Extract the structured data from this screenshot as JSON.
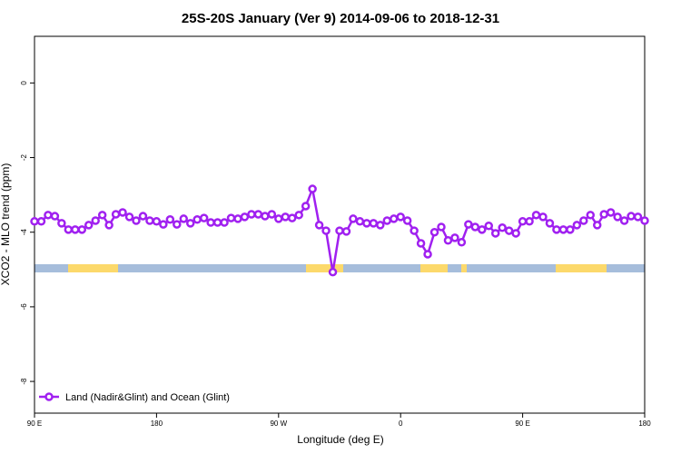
{
  "chart_data": {
    "type": "line",
    "title": "25S-20S January (Ver 9)   2014-09-06 to 2018-12-31",
    "x_label": "Longitude (deg E)",
    "y_label": "XCO2 - MLO trend (ppm)",
    "xlim": [
      90,
      540
    ],
    "ylim": [
      -8.85,
      1.25
    ],
    "xticks": [
      {
        "value": 90,
        "label": "90 E"
      },
      {
        "value": 180,
        "label": "180"
      },
      {
        "value": 270,
        "label": "90 W"
      },
      {
        "value": 360,
        "label": "0"
      },
      {
        "value": 450,
        "label": "90 E"
      },
      {
        "value": 540,
        "label": "180"
      }
    ],
    "yticks": [
      0,
      -2,
      -4,
      -6,
      -8
    ],
    "legend": "bottom-left",
    "x": [
      90,
      95,
      100,
      105,
      110,
      115,
      120,
      125,
      130,
      135,
      140,
      145,
      150,
      155,
      160,
      165,
      170,
      175,
      180,
      185,
      190,
      195,
      200,
      205,
      210,
      215,
      220,
      225,
      230,
      235,
      240,
      245,
      250,
      255,
      260,
      265,
      270,
      275,
      280,
      285,
      290,
      295,
      300,
      305,
      310,
      315,
      320,
      325,
      330,
      335,
      340,
      345,
      350,
      355,
      360,
      365,
      370,
      375,
      380,
      385,
      390,
      395,
      400,
      405,
      410,
      415,
      420,
      425,
      430,
      435,
      440,
      445,
      450,
      455,
      460,
      465,
      470,
      475,
      480,
      485,
      490,
      495,
      500,
      505,
      510,
      515,
      520,
      525,
      530,
      535,
      540
    ],
    "series": [
      {
        "name": "Land (Nadir&Glint) and Ocean (Glint)",
        "color": "#a020f0",
        "values": [
          -3.71,
          -3.71,
          -3.54,
          -3.57,
          -3.76,
          -3.93,
          -3.93,
          -3.93,
          -3.81,
          -3.69,
          -3.54,
          -3.81,
          -3.52,
          -3.47,
          -3.59,
          -3.69,
          -3.57,
          -3.69,
          -3.71,
          -3.79,
          -3.66,
          -3.79,
          -3.64,
          -3.76,
          -3.66,
          -3.62,
          -3.74,
          -3.74,
          -3.74,
          -3.62,
          -3.64,
          -3.59,
          -3.52,
          -3.52,
          -3.57,
          -3.52,
          -3.64,
          -3.59,
          -3.62,
          -3.54,
          -3.3,
          -2.84,
          -3.81,
          -3.96,
          -5.07,
          -3.96,
          -3.98,
          -3.64,
          -3.71,
          -3.76,
          -3.76,
          -3.81,
          -3.69,
          -3.64,
          -3.59,
          -3.69,
          -3.96,
          -4.3,
          -4.59,
          -4.0,
          -3.86,
          -4.22,
          -4.15,
          -4.27,
          -3.79,
          -3.86,
          -3.93,
          -3.83,
          -4.03,
          -3.88,
          -3.96,
          -4.03,
          -3.71,
          -3.71,
          -3.54,
          -3.59,
          -3.76,
          -3.93,
          -3.93,
          -3.93,
          -3.81,
          -3.69,
          -3.54,
          -3.81,
          -3.52,
          -3.47,
          -3.59,
          -3.69,
          -3.57,
          -3.59,
          -3.69
        ]
      }
    ]
  }
}
